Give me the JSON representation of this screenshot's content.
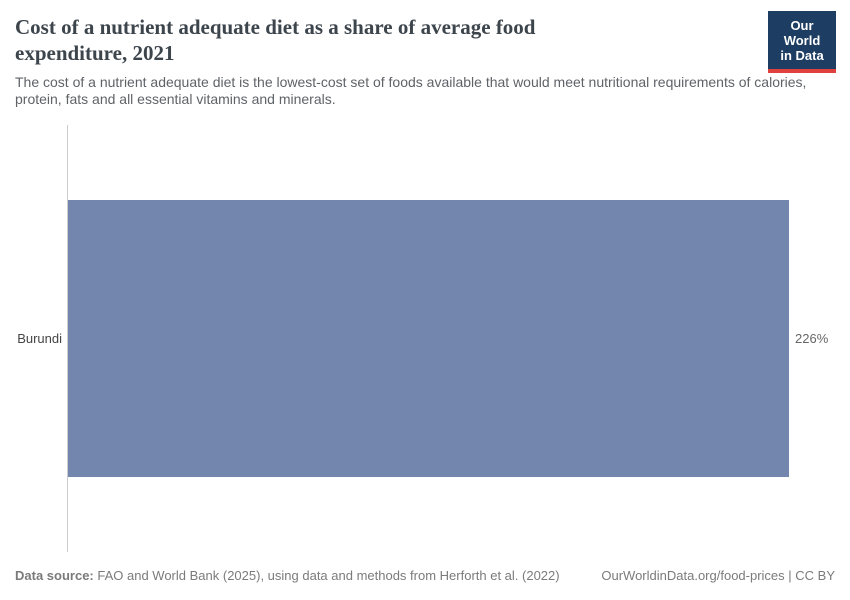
{
  "logo": {
    "line1": "Our World",
    "line2": "in Data"
  },
  "header": {
    "title": "Cost of a nutrient adequate diet as a share of average food expenditure, 2021",
    "subtitle": "The cost of a nutrient adequate diet is the lowest-cost set of foods available that would meet nutritional requirements of calories, protein, fats and all essential vitamins and minerals."
  },
  "chart_data": {
    "type": "bar",
    "orientation": "horizontal",
    "categories": [
      "Burundi"
    ],
    "values": [
      226
    ],
    "value_labels": [
      "226%"
    ],
    "value_suffix": "%",
    "xlim": [
      0,
      226
    ],
    "grid": false,
    "legend": "none",
    "bar_color": "#7286ae",
    "axis_line_color": "#cccccc"
  },
  "footer": {
    "source_label": "Data source:",
    "source_text": "FAO and World Bank (2025), using data and methods from Herforth et al. (2022)",
    "link": "OurWorldinData.org/food-prices | CC BY"
  },
  "colors": {
    "title": "#3d454c",
    "subtitle": "#5f6368",
    "logo_background": "#1d3d63",
    "logo_stripe": "#e0403e",
    "bar": "#7286ae"
  }
}
